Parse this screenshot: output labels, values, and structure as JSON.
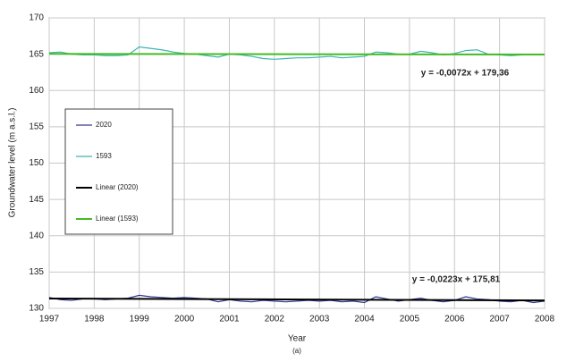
{
  "chart_data": {
    "type": "line",
    "x_label": "Year",
    "y_label": "Groundwater level (m a.s.l.)",
    "caption": "(a)",
    "xlim": [
      1997,
      2008
    ],
    "xticks": [
      1997,
      1998,
      1999,
      2000,
      2001,
      2002,
      2003,
      2004,
      2005,
      2006,
      2007,
      2008
    ],
    "ylim": [
      130,
      170
    ],
    "yticks": [
      130,
      135,
      140,
      145,
      150,
      155,
      160,
      165,
      170
    ],
    "grid": true,
    "legend": "left",
    "series": [
      {
        "name": "2020",
        "color": "#2e3a8c",
        "x": [
          1997,
          1997.25,
          1997.5,
          1997.75,
          1998,
          1998.25,
          1998.5,
          1998.75,
          1999,
          1999.25,
          1999.5,
          1999.75,
          2000,
          2000.25,
          2000.5,
          2000.75,
          2001,
          2001.25,
          2001.5,
          2001.75,
          2002,
          2002.25,
          2002.5,
          2002.75,
          2003,
          2003.25,
          2003.5,
          2003.75,
          2004,
          2004.25,
          2004.5,
          2004.75,
          2005,
          2005.25,
          2005.5,
          2005.75,
          2006,
          2006.25,
          2006.5,
          2006.75,
          2007,
          2007.25,
          2007.5,
          2007.75,
          2008
        ],
        "values": [
          131.5,
          131.2,
          131.1,
          131.3,
          131.3,
          131.2,
          131.3,
          131.4,
          131.8,
          131.6,
          131.5,
          131.4,
          131.5,
          131.4,
          131.3,
          130.9,
          131.2,
          131.0,
          130.9,
          131.1,
          131.0,
          130.9,
          131.0,
          131.1,
          131.0,
          131.1,
          130.9,
          131.0,
          130.8,
          131.6,
          131.3,
          131.0,
          131.2,
          131.4,
          131.1,
          130.9,
          131.1,
          131.6,
          131.3,
          131.2,
          131.0,
          130.9,
          131.1,
          130.8,
          131.0
        ]
      },
      {
        "name": "1593",
        "color": "#3cb4b4",
        "x": [
          1997,
          1997.25,
          1997.5,
          1997.75,
          1998,
          1998.25,
          1998.5,
          1998.75,
          1999,
          1999.25,
          1999.5,
          1999.75,
          2000,
          2000.25,
          2000.5,
          2000.75,
          2001,
          2001.25,
          2001.5,
          2001.75,
          2002,
          2002.25,
          2002.5,
          2002.75,
          2003,
          2003.25,
          2003.5,
          2003.75,
          2004,
          2004.25,
          2004.5,
          2004.75,
          2005,
          2005.25,
          2005.5,
          2005.75,
          2006,
          2006.25,
          2006.5,
          2006.75,
          2007,
          2007.25,
          2007.5,
          2007.75,
          2008
        ],
        "values": [
          165.2,
          165.3,
          165.0,
          164.9,
          164.9,
          164.8,
          164.8,
          164.9,
          166.0,
          165.8,
          165.6,
          165.3,
          165.1,
          165.0,
          164.8,
          164.6,
          165.0,
          164.9,
          164.7,
          164.4,
          164.3,
          164.4,
          164.5,
          164.5,
          164.6,
          164.7,
          164.5,
          164.6,
          164.7,
          165.3,
          165.2,
          165.0,
          165.0,
          165.4,
          165.2,
          164.9,
          165.1,
          165.5,
          165.6,
          165.0,
          164.9,
          164.8,
          164.9,
          164.9,
          164.9
        ]
      },
      {
        "name": "Linear (2020)",
        "color": "#000000",
        "x": [
          1997,
          2008
        ],
        "values": [
          131.35,
          131.1
        ]
      },
      {
        "name": "Linear (1593)",
        "color": "#44bb22",
        "x": [
          1997,
          2008
        ],
        "values": [
          165.05,
          164.95
        ]
      }
    ],
    "annotations": [
      {
        "text": "y = -0,0072x + 179,36",
        "color": "#1f8f8f"
      },
      {
        "text": "y = -0,0223x + 175,81",
        "color": "#000000"
      }
    ]
  }
}
